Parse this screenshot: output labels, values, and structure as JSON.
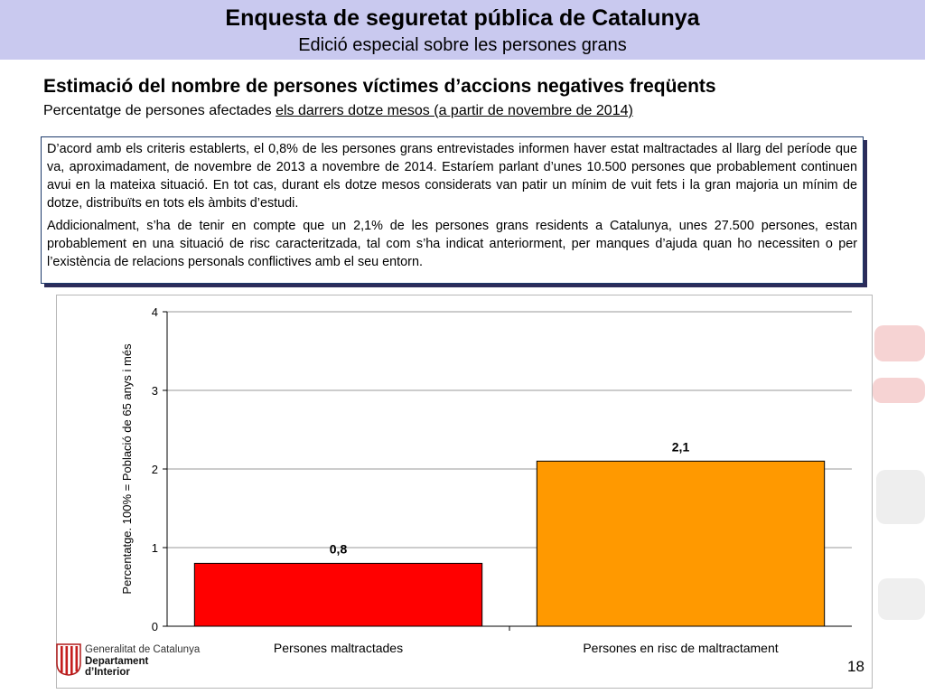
{
  "header": {
    "title": "Enquesta de seguretat pública de Catalunya",
    "subtitle": "Edició especial sobre les persones grans"
  },
  "section": {
    "title": "Estimació del nombre de persones víctimes d’accions negatives freqüents",
    "subtitle_plain": "Percentatge de persones afectades ",
    "subtitle_underlined": "els darrers dotze mesos (a partir de novembre de 2014)"
  },
  "textbox": {
    "paragraph_1": "D’acord amb els criteris establerts, el 0,8% de les persones grans entrevistades informen haver estat maltractades al llarg del període que va, aproximadament, de novembre de 2013 a novembre de 2014. Estaríem parlant d’unes 10.500 persones que probablement continuen avui en la mateixa situació. En tot cas, durant els dotze mesos considerats van patir un mínim de vuit fets i la gran majoria un mínim de dotze, distribuïts en tots els àmbits d’estudi.",
    "paragraph_2": "Addicionalment, s’ha de tenir en compte que un 2,1% de les persones grans residents a Catalunya, unes 27.500 persones, estan probablement en una situació de risc caracteritzada, tal com s’ha indicat anteriorment, per manques d’ajuda quan ho necessiten o per l’existència de relacions personals conflictives amb el seu entorn."
  },
  "chart_data": {
    "type": "bar",
    "title": "",
    "categories": [
      "Persones maltractades",
      "Persones en risc de maltractament"
    ],
    "values": [
      0.8,
      2.1
    ],
    "value_labels": [
      "0,8",
      "2,1"
    ],
    "colors": [
      "#ff0000",
      "#ff9900"
    ],
    "xlabel": "",
    "ylabel": "Percentatge. 100% = Població de 65 anys i més",
    "ylim": [
      0,
      4
    ],
    "yticks": [
      0,
      1,
      2,
      3,
      4
    ],
    "grid": true,
    "legend": "none"
  },
  "footer": {
    "organization": "Generalitat de Catalunya",
    "department_line1": "Departament",
    "department_line2": "d’Interior",
    "page_number": "18"
  },
  "colors": {
    "header_band": "#c9c9ef",
    "textbox_border": "#1d3a6b",
    "watermark": "#f6d3d3"
  }
}
